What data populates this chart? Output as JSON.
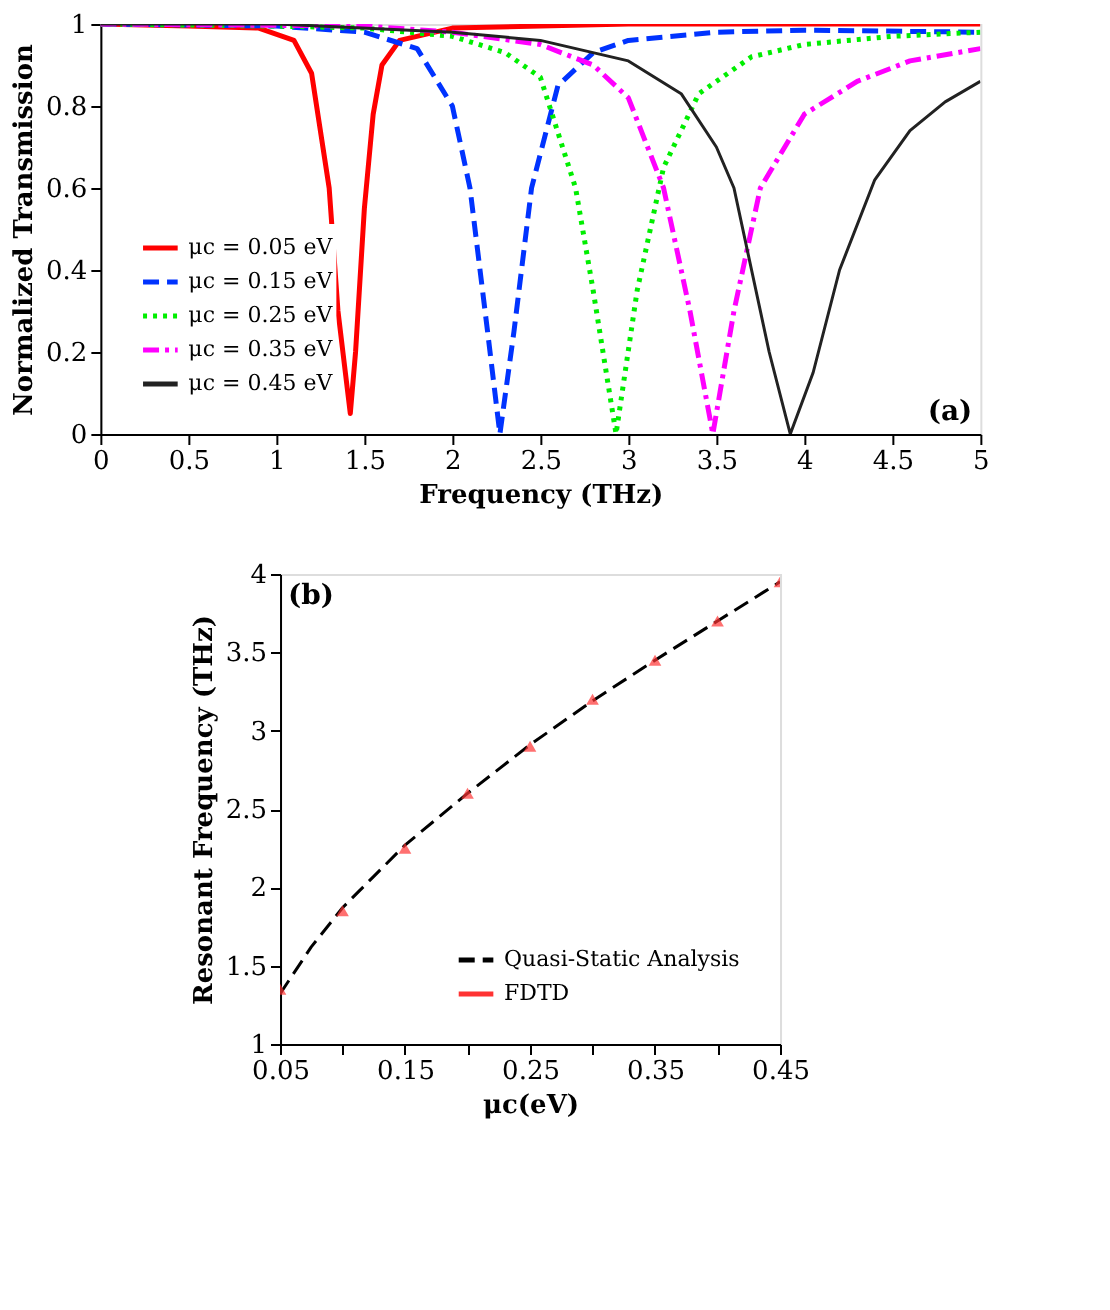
{
  "chart_data": [
    {
      "type": "line",
      "xlabel": "Frequency (THz)",
      "ylabel": "Normalized Transmission",
      "annotations": [
        "(a)"
      ],
      "xlim": [
        0,
        5
      ],
      "ylim": [
        0,
        1.0
      ],
      "xticks": [
        0,
        0.5,
        1,
        1.5,
        2,
        2.5,
        3,
        3.5,
        4,
        4.5,
        5
      ],
      "yticks": [
        0,
        0.2,
        0.4,
        0.6,
        0.8,
        1
      ],
      "grid": false,
      "legend": "bottom left",
      "series": [
        {
          "name": "μc = 0.05 eV",
          "color": "#ff0000",
          "line_style": "solid",
          "x": [
            0,
            0.5,
            0.9,
            1.1,
            1.2,
            1.3,
            1.35,
            1.42,
            1.45,
            1.5,
            1.55,
            1.6,
            1.7,
            2,
            3,
            5
          ],
          "values": [
            1,
            0.995,
            0.99,
            0.96,
            0.88,
            0.6,
            0.3,
            0.05,
            0.2,
            0.55,
            0.78,
            0.9,
            0.96,
            0.99,
            1,
            1
          ]
        },
        {
          "name": "μc = 0.15 eV",
          "color": "#0033ff",
          "line_style": "dashed",
          "x": [
            0,
            1,
            1.5,
            1.8,
            2.0,
            2.1,
            2.2,
            2.27,
            2.35,
            2.45,
            2.6,
            2.8,
            3,
            3.5,
            4,
            5
          ],
          "values": [
            1,
            0.995,
            0.98,
            0.94,
            0.8,
            0.6,
            0.25,
            0.0,
            0.25,
            0.6,
            0.85,
            0.93,
            0.96,
            0.98,
            0.985,
            0.98
          ]
        },
        {
          "name": "μc = 0.25 eV",
          "color": "#00ee00",
          "line_style": "dotted",
          "x": [
            0,
            1,
            1.5,
            2,
            2.3,
            2.5,
            2.7,
            2.8,
            2.93,
            3.05,
            3.2,
            3.4,
            3.7,
            4,
            4.5,
            5
          ],
          "values": [
            1,
            0.995,
            0.99,
            0.97,
            0.93,
            0.87,
            0.6,
            0.35,
            0,
            0.35,
            0.65,
            0.83,
            0.92,
            0.95,
            0.97,
            0.98
          ]
        },
        {
          "name": "μc = 0.35 eV",
          "color": "#ff00ff",
          "line_style": "dashdot",
          "x": [
            0,
            1.5,
            2,
            2.5,
            2.8,
            3.0,
            3.2,
            3.35,
            3.48,
            3.6,
            3.75,
            4,
            4.3,
            4.6,
            5
          ],
          "values": [
            1,
            0.995,
            0.98,
            0.95,
            0.9,
            0.82,
            0.6,
            0.3,
            0,
            0.3,
            0.6,
            0.78,
            0.86,
            0.91,
            0.94
          ]
        },
        {
          "name": "μc = 0.45 eV",
          "color": "#222222",
          "line_style": "solid",
          "x": [
            0,
            1,
            2,
            2.5,
            3,
            3.3,
            3.5,
            3.6,
            3.7,
            3.8,
            3.92,
            4.05,
            4.2,
            4.4,
            4.6,
            4.8,
            5
          ],
          "values": [
            1,
            1,
            0.98,
            0.96,
            0.91,
            0.83,
            0.7,
            0.6,
            0.4,
            0.2,
            0,
            0.15,
            0.4,
            0.62,
            0.74,
            0.81,
            0.86
          ]
        }
      ]
    },
    {
      "type": "line",
      "xlabel": "μc(eV)",
      "ylabel": "Resonant Frequency (THz)",
      "annotations": [
        "(b)"
      ],
      "xlim": [
        0.05,
        0.45
      ],
      "ylim": [
        1,
        4
      ],
      "xticks": [
        0.05,
        {
          "value": 0.1,
          "label": null
        },
        0.15,
        {
          "value": 0.2,
          "label": null
        },
        0.25,
        {
          "value": 0.3,
          "label": null
        },
        0.35,
        {
          "value": 0.4,
          "label": null
        },
        0.45
      ],
      "yticks": [
        1,
        1.5,
        2,
        2.5,
        3,
        3.5,
        4
      ],
      "grid": false,
      "legend": "bottom right",
      "series": [
        {
          "name": "Quasi-Static Analysis",
          "color": "#000000",
          "type": "line",
          "line_style": "dashed",
          "x": [
            0.05,
            0.075,
            0.1,
            0.125,
            0.15,
            0.2,
            0.25,
            0.3,
            0.35,
            0.4,
            0.45
          ],
          "values": [
            1.32,
            1.62,
            1.87,
            2.07,
            2.27,
            2.6,
            2.91,
            3.19,
            3.45,
            3.7,
            3.95
          ]
        },
        {
          "name": "FDTD",
          "color": "#ff3333",
          "type": "scatter",
          "marker": "triangle",
          "x": [
            0.05,
            0.1,
            0.15,
            0.2,
            0.25,
            0.3,
            0.35,
            0.4,
            0.45
          ],
          "values": [
            1.35,
            1.85,
            2.25,
            2.6,
            2.9,
            3.2,
            3.45,
            3.7,
            3.95
          ]
        }
      ]
    }
  ]
}
